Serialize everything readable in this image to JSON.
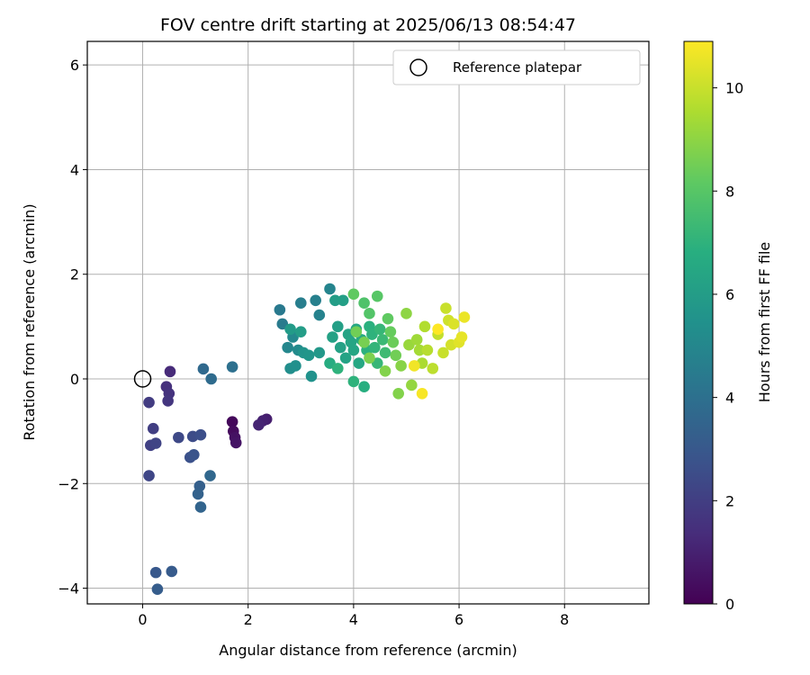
{
  "chart_data": {
    "type": "scatter",
    "title": "FOV centre drift starting at 2025/06/13 08:54:47",
    "xlabel": "Angular distance from reference (arcmin)",
    "ylabel": "Rotation from reference (arcmin)",
    "xlim": [
      -1.05,
      9.6
    ],
    "ylim": [
      -4.3,
      6.45
    ],
    "xticks": [
      0,
      2,
      4,
      6,
      8
    ],
    "yticks": [
      -4,
      -2,
      0,
      2,
      4,
      6
    ],
    "grid": true,
    "legend_placement": "top-right",
    "colorbar": {
      "label": "Hours from first FF file",
      "range": [
        0,
        10.9
      ],
      "ticks": [
        0,
        2,
        4,
        6,
        8,
        10
      ],
      "colormap": "viridis"
    },
    "reference_marker": {
      "label": "Reference platepar",
      "x": 0,
      "y": 0
    },
    "series": [
      {
        "points": [
          {
            "x": 1.7,
            "y": -0.82,
            "c": 0.2
          },
          {
            "x": 1.72,
            "y": -1.0,
            "c": 0.3
          },
          {
            "x": 1.75,
            "y": -1.12,
            "c": 0.5
          },
          {
            "x": 1.77,
            "y": -1.22,
            "c": 0.6
          },
          {
            "x": 2.35,
            "y": -0.77,
            "c": 0.9
          },
          {
            "x": 2.28,
            "y": -0.8,
            "c": 1.0
          },
          {
            "x": 2.2,
            "y": -0.88,
            "c": 1.1
          },
          {
            "x": 0.52,
            "y": 0.14,
            "c": 1.3
          },
          {
            "x": 0.45,
            "y": -0.15,
            "c": 1.5
          },
          {
            "x": 0.5,
            "y": -0.28,
            "c": 1.6
          },
          {
            "x": 0.48,
            "y": -0.42,
            "c": 1.7
          },
          {
            "x": 0.12,
            "y": -0.45,
            "c": 1.9
          },
          {
            "x": 0.2,
            "y": -0.95,
            "c": 2.0
          },
          {
            "x": 0.15,
            "y": -1.27,
            "c": 2.1
          },
          {
            "x": 0.25,
            "y": -1.23,
            "c": 2.2
          },
          {
            "x": 0.12,
            "y": -1.85,
            "c": 2.3
          },
          {
            "x": 0.68,
            "y": -1.12,
            "c": 2.4
          },
          {
            "x": 0.95,
            "y": -1.1,
            "c": 2.5
          },
          {
            "x": 1.1,
            "y": -1.07,
            "c": 2.6
          },
          {
            "x": 0.9,
            "y": -1.5,
            "c": 2.7
          },
          {
            "x": 0.97,
            "y": -1.45,
            "c": 2.8
          },
          {
            "x": 0.25,
            "y": -3.7,
            "c": 3.0
          },
          {
            "x": 0.55,
            "y": -3.68,
            "c": 3.1
          },
          {
            "x": 0.28,
            "y": -4.02,
            "c": 3.2
          },
          {
            "x": 1.08,
            "y": -2.05,
            "c": 3.3
          },
          {
            "x": 1.05,
            "y": -2.2,
            "c": 3.4
          },
          {
            "x": 1.1,
            "y": -2.45,
            "c": 3.5
          },
          {
            "x": 1.28,
            "y": -1.85,
            "c": 3.6
          },
          {
            "x": 1.15,
            "y": 0.19,
            "c": 3.7
          },
          {
            "x": 1.3,
            "y": 0.0,
            "c": 3.8
          },
          {
            "x": 1.7,
            "y": 0.23,
            "c": 4.0
          },
          {
            "x": 2.6,
            "y": 1.32,
            "c": 4.4
          },
          {
            "x": 2.65,
            "y": 1.05,
            "c": 4.5
          },
          {
            "x": 3.0,
            "y": 1.45,
            "c": 4.6
          },
          {
            "x": 3.28,
            "y": 1.5,
            "c": 4.7
          },
          {
            "x": 3.35,
            "y": 1.22,
            "c": 4.8
          },
          {
            "x": 3.55,
            "y": 1.72,
            "c": 4.9
          },
          {
            "x": 2.75,
            "y": 0.6,
            "c": 5.0
          },
          {
            "x": 2.85,
            "y": 0.8,
            "c": 5.1
          },
          {
            "x": 2.95,
            "y": 0.55,
            "c": 5.2
          },
          {
            "x": 2.8,
            "y": 0.2,
            "c": 5.3
          },
          {
            "x": 2.9,
            "y": 0.25,
            "c": 5.4
          },
          {
            "x": 3.2,
            "y": 0.05,
            "c": 5.5
          },
          {
            "x": 3.05,
            "y": 0.5,
            "c": 5.6
          },
          {
            "x": 3.15,
            "y": 0.45,
            "c": 5.7
          },
          {
            "x": 3.35,
            "y": 0.5,
            "c": 5.8
          },
          {
            "x": 2.8,
            "y": 0.95,
            "c": 5.9
          },
          {
            "x": 3.0,
            "y": 0.9,
            "c": 6.0
          },
          {
            "x": 3.65,
            "y": 1.5,
            "c": 6.0
          },
          {
            "x": 3.8,
            "y": 1.5,
            "c": 6.1
          },
          {
            "x": 3.7,
            "y": 1.0,
            "c": 6.1
          },
          {
            "x": 3.6,
            "y": 0.8,
            "c": 6.2
          },
          {
            "x": 3.75,
            "y": 0.6,
            "c": 6.2
          },
          {
            "x": 3.85,
            "y": 0.4,
            "c": 6.3
          },
          {
            "x": 3.9,
            "y": 0.85,
            "c": 6.3
          },
          {
            "x": 3.95,
            "y": 0.7,
            "c": 6.4
          },
          {
            "x": 4.0,
            "y": 0.55,
            "c": 6.4
          },
          {
            "x": 4.05,
            "y": 0.95,
            "c": 6.5
          },
          {
            "x": 4.1,
            "y": 0.3,
            "c": 6.5
          },
          {
            "x": 4.15,
            "y": 0.75,
            "c": 6.6
          },
          {
            "x": 3.55,
            "y": 0.3,
            "c": 6.7
          },
          {
            "x": 3.7,
            "y": 0.2,
            "c": 7.0
          },
          {
            "x": 4.0,
            "y": -0.05,
            "c": 7.0
          },
          {
            "x": 4.2,
            "y": -0.15,
            "c": 6.8
          },
          {
            "x": 4.25,
            "y": 0.55,
            "c": 6.9
          },
          {
            "x": 4.3,
            "y": 1.0,
            "c": 6.9
          },
          {
            "x": 4.35,
            "y": 0.85,
            "c": 7.0
          },
          {
            "x": 4.4,
            "y": 0.6,
            "c": 7.1
          },
          {
            "x": 4.45,
            "y": 0.3,
            "c": 7.2
          },
          {
            "x": 4.5,
            "y": 0.95,
            "c": 7.2
          },
          {
            "x": 4.55,
            "y": 0.75,
            "c": 7.3
          },
          {
            "x": 4.6,
            "y": 0.5,
            "c": 7.4
          },
          {
            "x": 4.2,
            "y": 1.45,
            "c": 7.8
          },
          {
            "x": 4.3,
            "y": 1.25,
            "c": 7.9
          },
          {
            "x": 4.45,
            "y": 1.58,
            "c": 8.0
          },
          {
            "x": 4.0,
            "y": 1.62,
            "c": 8.2
          },
          {
            "x": 4.65,
            "y": 1.15,
            "c": 8.2
          },
          {
            "x": 4.7,
            "y": 0.9,
            "c": 8.3
          },
          {
            "x": 4.75,
            "y": 0.7,
            "c": 8.4
          },
          {
            "x": 4.8,
            "y": 0.45,
            "c": 8.5
          },
          {
            "x": 4.05,
            "y": 0.9,
            "c": 8.5
          },
          {
            "x": 4.2,
            "y": 0.7,
            "c": 8.6
          },
          {
            "x": 4.3,
            "y": 0.4,
            "c": 8.7
          },
          {
            "x": 4.6,
            "y": 0.15,
            "c": 8.8
          },
          {
            "x": 4.85,
            "y": -0.28,
            "c": 8.8
          },
          {
            "x": 4.9,
            "y": 0.25,
            "c": 8.9
          },
          {
            "x": 5.0,
            "y": 1.25,
            "c": 9.0
          },
          {
            "x": 5.1,
            "y": -0.12,
            "c": 9.1
          },
          {
            "x": 5.05,
            "y": 0.65,
            "c": 9.2
          },
          {
            "x": 5.2,
            "y": 0.75,
            "c": 9.3
          },
          {
            "x": 5.25,
            "y": 0.55,
            "c": 9.4
          },
          {
            "x": 5.3,
            "y": 0.3,
            "c": 9.5
          },
          {
            "x": 5.35,
            "y": 1.0,
            "c": 9.6
          },
          {
            "x": 5.4,
            "y": 0.55,
            "c": 9.7
          },
          {
            "x": 5.5,
            "y": 0.2,
            "c": 9.8
          },
          {
            "x": 5.6,
            "y": 0.85,
            "c": 9.9
          },
          {
            "x": 5.7,
            "y": 0.5,
            "c": 10.0
          },
          {
            "x": 5.75,
            "y": 1.35,
            "c": 10.0
          },
          {
            "x": 5.8,
            "y": 1.12,
            "c": 10.1
          },
          {
            "x": 5.85,
            "y": 0.65,
            "c": 10.2
          },
          {
            "x": 5.9,
            "y": 1.05,
            "c": 10.3
          },
          {
            "x": 6.0,
            "y": 0.7,
            "c": 10.4
          },
          {
            "x": 6.05,
            "y": 0.8,
            "c": 10.5
          },
          {
            "x": 6.1,
            "y": 1.18,
            "c": 10.6
          },
          {
            "x": 5.15,
            "y": 0.25,
            "c": 10.7
          },
          {
            "x": 5.3,
            "y": -0.28,
            "c": 10.8
          },
          {
            "x": 5.6,
            "y": 0.95,
            "c": 10.9
          }
        ]
      }
    ]
  }
}
